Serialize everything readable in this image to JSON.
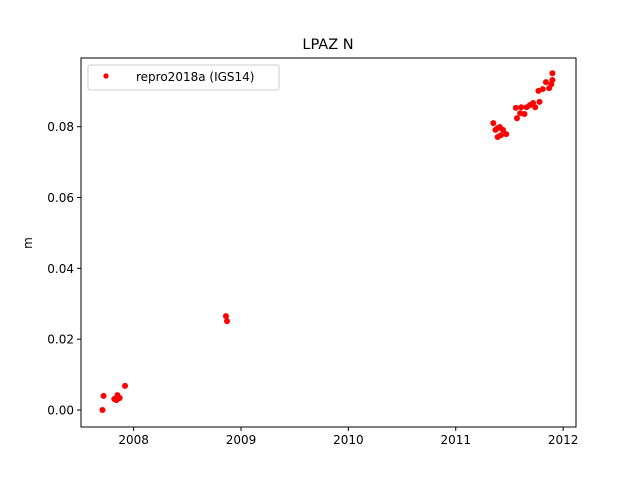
{
  "chart_data": {
    "type": "scatter",
    "title": "LPAZ N",
    "xlabel": "",
    "ylabel": "m",
    "xlim": [
      2007.51,
      2012.12
    ],
    "ylim": [
      -0.0048,
      0.0994
    ],
    "xticks": [
      2008,
      2009,
      2010,
      2011,
      2012
    ],
    "xtick_labels": [
      "2008",
      "2009",
      "2010",
      "2011",
      "2012"
    ],
    "yticks": [
      0.0,
      0.02,
      0.04,
      0.06,
      0.08
    ],
    "ytick_labels": [
      "0.00",
      "0.02",
      "0.04",
      "0.06",
      "0.08"
    ],
    "grid": false,
    "legend_position": "top-left",
    "series": [
      {
        "name": "repro2018a (IGS14)",
        "color": "#ff0000",
        "marker": "circle",
        "x": [
          2007.71,
          2007.72,
          2007.82,
          2007.84,
          2007.85,
          2007.87,
          2007.92,
          2008.86,
          2008.87,
          2011.35,
          2011.37,
          2011.39,
          2011.41,
          2011.42,
          2011.39,
          2011.44,
          2011.47,
          2011.56,
          2011.57,
          2011.6,
          2011.61,
          2011.64,
          2011.66,
          2011.69,
          2011.72,
          2011.74,
          2011.78,
          2011.77,
          2011.81,
          2011.84,
          2011.87,
          2011.89,
          2011.9,
          2011.9
        ],
        "y": [
          0.0,
          0.004,
          0.0031,
          0.0028,
          0.0042,
          0.0034,
          0.0068,
          0.0265,
          0.0251,
          0.081,
          0.0791,
          0.0796,
          0.0799,
          0.0776,
          0.0771,
          0.0791,
          0.0779,
          0.0853,
          0.0824,
          0.0838,
          0.0855,
          0.0836,
          0.0855,
          0.0861,
          0.0867,
          0.0855,
          0.087,
          0.0901,
          0.0906,
          0.0926,
          0.0909,
          0.092,
          0.0932,
          0.0951
        ]
      }
    ]
  }
}
